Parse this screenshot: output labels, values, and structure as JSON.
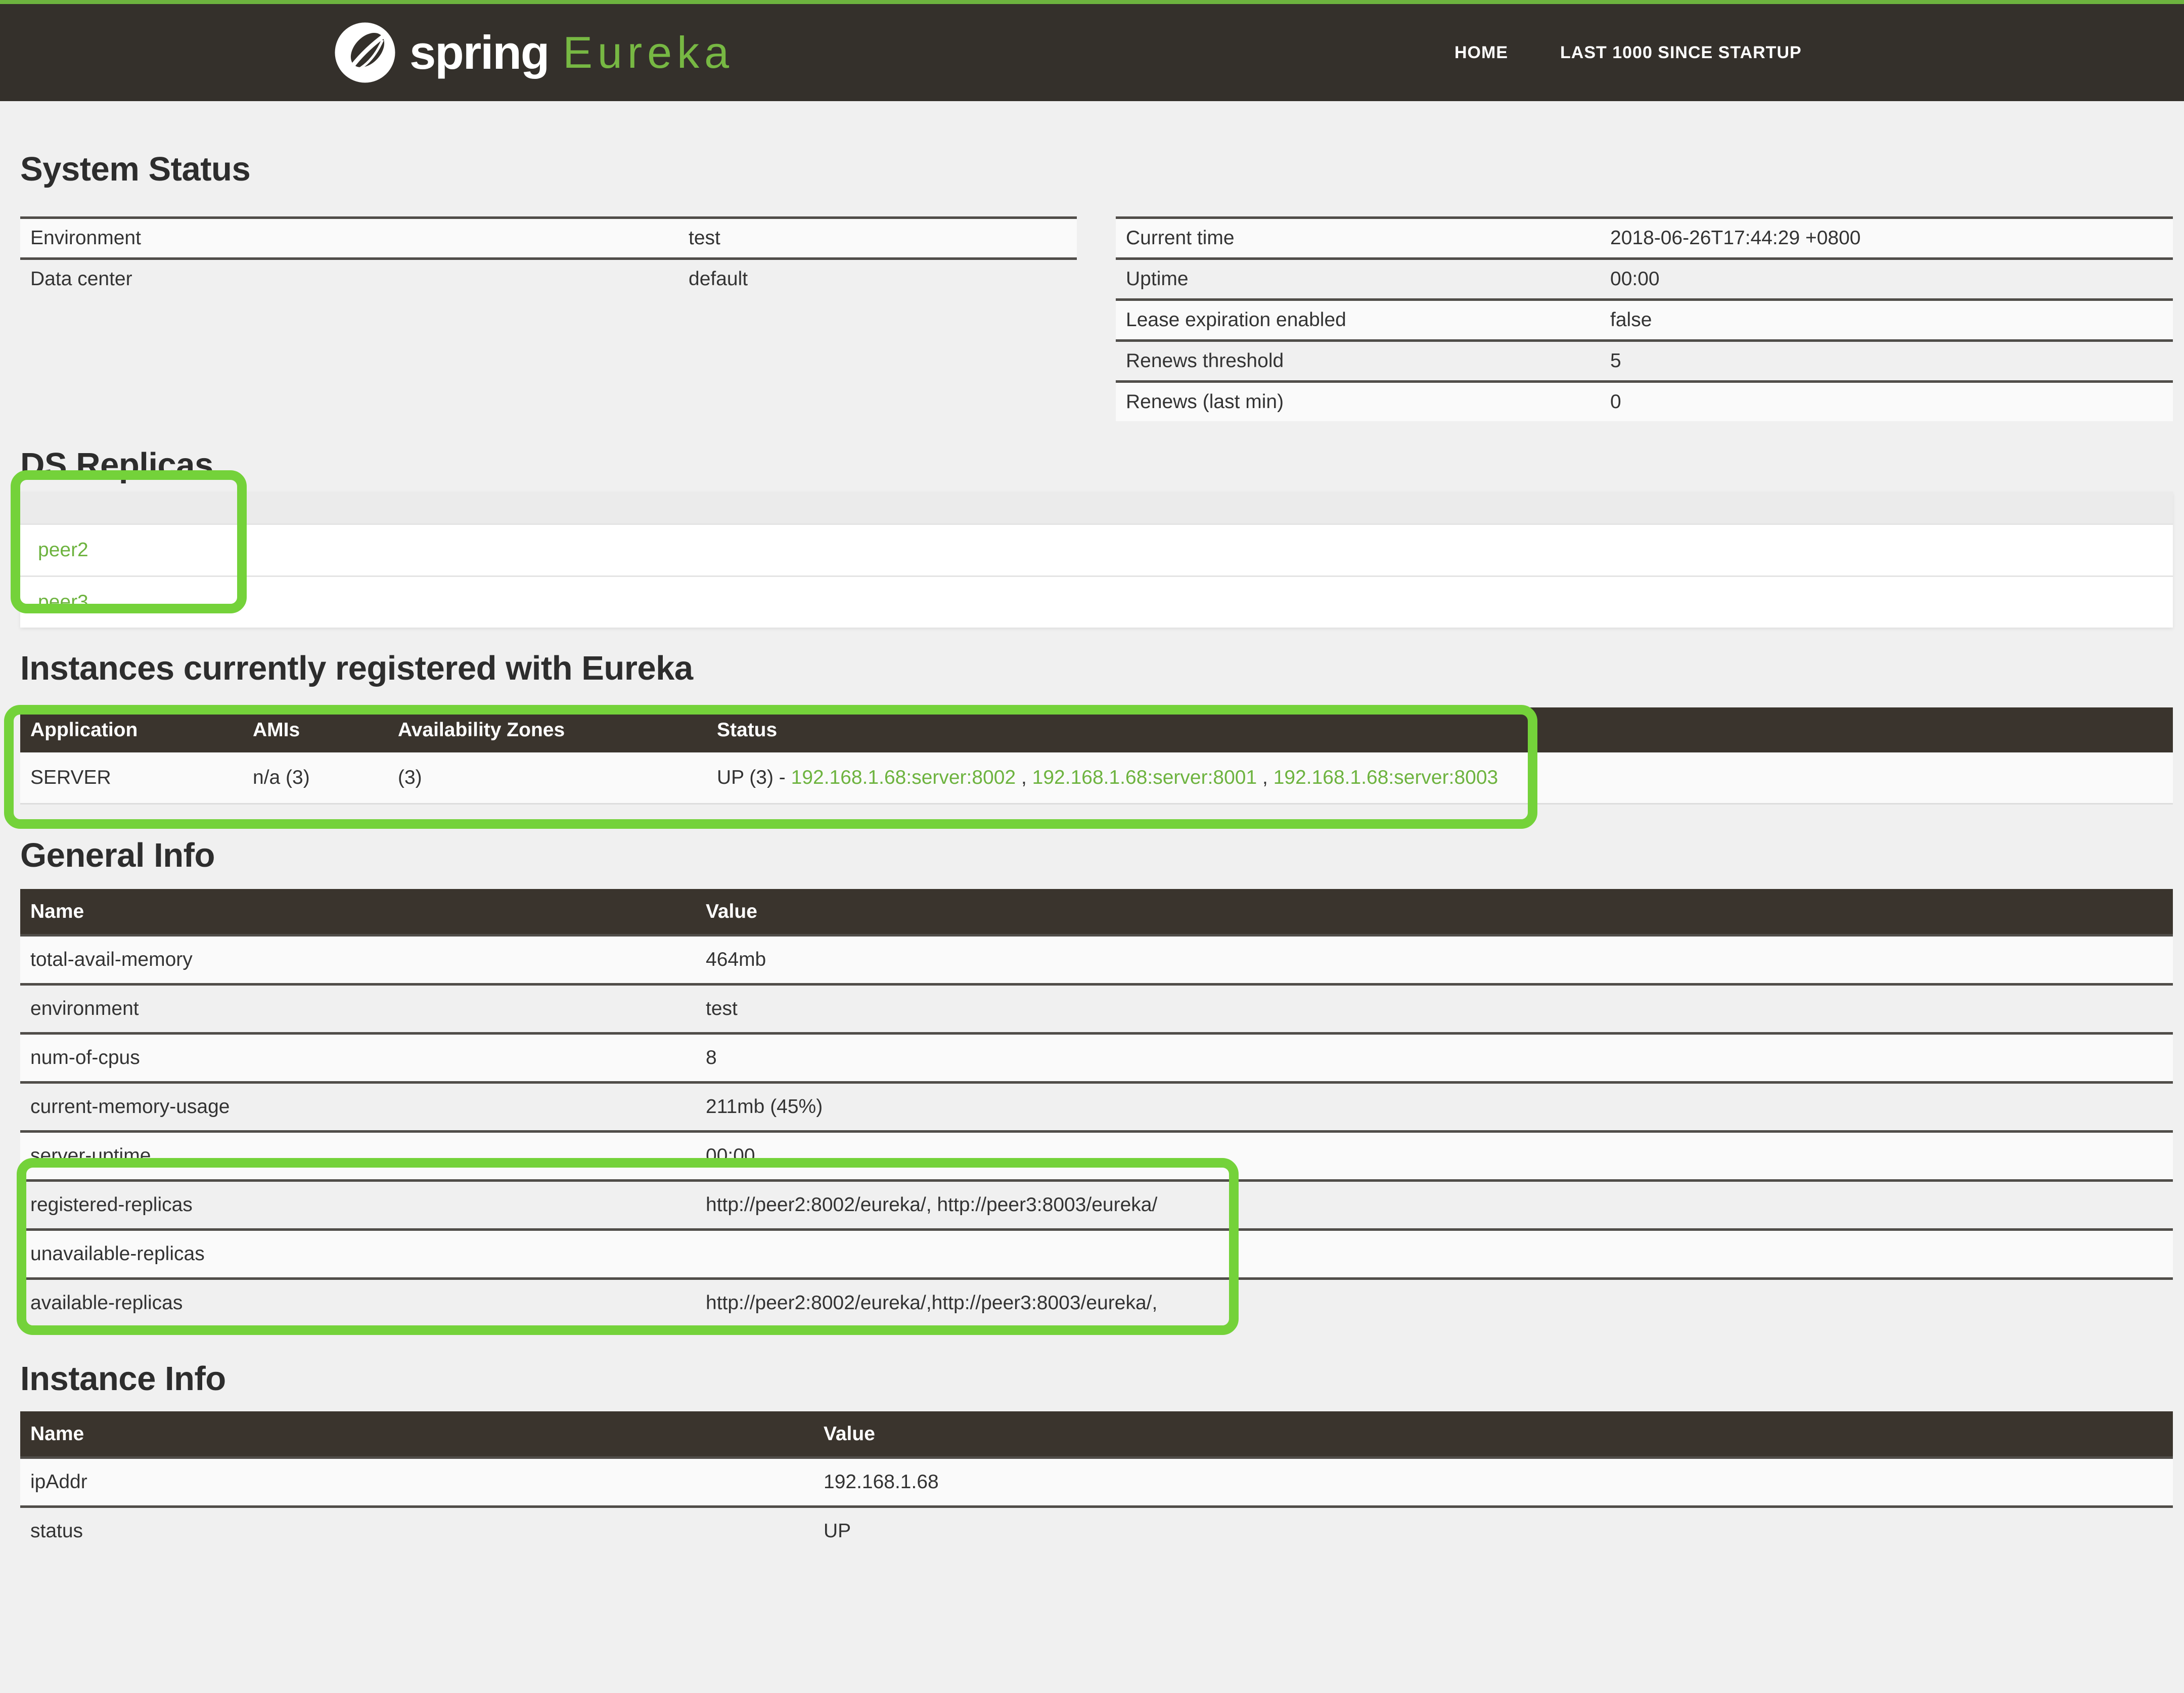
{
  "navbar": {
    "brand_spring": "spring",
    "brand_product": "Eureka",
    "links": [
      {
        "label": "HOME"
      },
      {
        "label": "LAST 1000 SINCE STARTUP"
      }
    ]
  },
  "system_status": {
    "title": "System Status",
    "left_rows": [
      {
        "label": "Environment",
        "value": "test"
      },
      {
        "label": "Data center",
        "value": "default"
      }
    ],
    "right_rows": [
      {
        "label": "Current time",
        "value": "2018-06-26T17:44:29 +0800"
      },
      {
        "label": "Uptime",
        "value": "00:00"
      },
      {
        "label": "Lease expiration enabled",
        "value": "false"
      },
      {
        "label": "Renews threshold",
        "value": "5"
      },
      {
        "label": "Renews (last min)",
        "value": "0"
      }
    ]
  },
  "ds_replicas": {
    "title": "DS Replicas",
    "replicas": [
      "peer2",
      "peer3"
    ]
  },
  "instances": {
    "title": "Instances currently registered with Eureka",
    "headers": [
      "Application",
      "AMIs",
      "Availability Zones",
      "Status"
    ],
    "rows": [
      {
        "application": "SERVER",
        "amis": "n/a (3)",
        "zones": "(3)",
        "status_prefix": "UP (3) - ",
        "status_links": [
          "192.168.1.68:server:8002",
          "192.168.1.68:server:8001",
          "192.168.1.68:server:8003"
        ],
        "separator": " , "
      }
    ]
  },
  "general_info": {
    "title": "General Info",
    "headers": [
      "Name",
      "Value"
    ],
    "rows": [
      {
        "label": "total-avail-memory",
        "value": "464mb"
      },
      {
        "label": "environment",
        "value": "test"
      },
      {
        "label": "num-of-cpus",
        "value": "8"
      },
      {
        "label": "current-memory-usage",
        "value": "211mb (45%)"
      },
      {
        "label": "server-uptime",
        "value": "00:00"
      },
      {
        "label": "registered-replicas",
        "value": "http://peer2:8002/eureka/, http://peer3:8003/eureka/"
      },
      {
        "label": "unavailable-replicas",
        "value": ""
      },
      {
        "label": "available-replicas",
        "value": "http://peer2:8002/eureka/,http://peer3:8003/eureka/,"
      }
    ]
  },
  "instance_info": {
    "title": "Instance Info",
    "headers": [
      "Name",
      "Value"
    ],
    "rows": [
      {
        "label": "ipAddr",
        "value": "192.168.1.68"
      },
      {
        "label": "status",
        "value": "UP"
      }
    ]
  },
  "annotations": {
    "color": "#74d23a"
  },
  "colors": {
    "navbar_bg": "#34302b",
    "accent_green": "#6db33f",
    "table_header_bg": "#3a342d",
    "page_bg": "#f0f0f0"
  }
}
